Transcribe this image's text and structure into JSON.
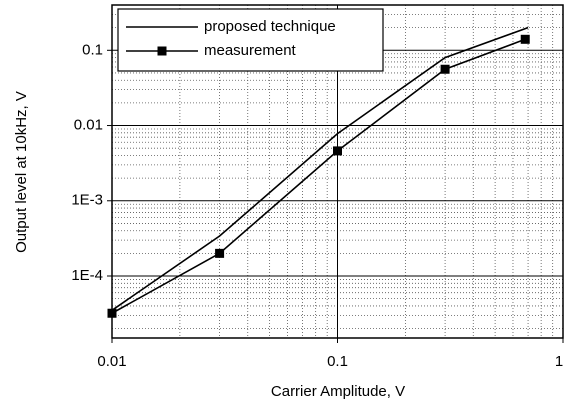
{
  "chart_data": {
    "type": "line",
    "x_label": "Carrier Amplitude, V",
    "y_label": "Output level at 10kHz, V",
    "x_log": true,
    "y_log": true,
    "xlim": [
      0.01,
      1
    ],
    "ylim": [
      1.5e-05,
      0.4
    ],
    "xticks": [
      0.01,
      0.1,
      1
    ],
    "yticks": [
      {
        "value": 0.0001,
        "label": "1E-4"
      },
      {
        "value": 0.001,
        "label": "1E-3"
      },
      0.01,
      0.1
    ],
    "grid": true,
    "minor_grid": true,
    "legend": "upper left",
    "series": [
      {
        "name": "proposed technique",
        "color": "#000000",
        "marker": "none",
        "x": [
          0.01,
          0.03,
          0.1,
          0.3,
          0.7
        ],
        "values": [
          3.5e-05,
          0.00034,
          0.0078,
          0.08,
          0.2
        ]
      },
      {
        "name": "measurement",
        "color": "#000000",
        "marker": "square",
        "x": [
          0.01,
          0.03,
          0.1,
          0.3,
          0.68
        ],
        "values": [
          3.2e-05,
          0.0002,
          0.0046,
          0.056,
          0.14
        ]
      }
    ]
  }
}
